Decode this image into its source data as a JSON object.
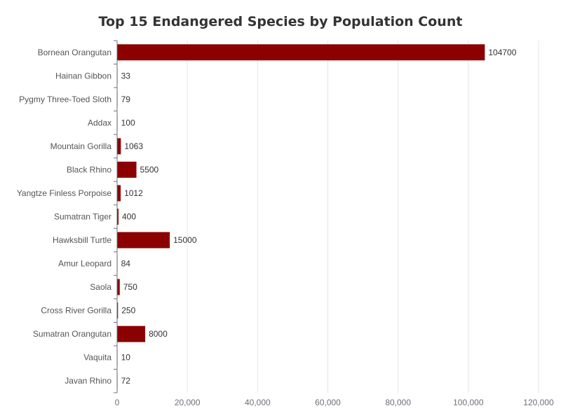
{
  "chart_data": {
    "type": "bar",
    "orientation": "horizontal",
    "title": "Top 15 Endangered Species by Population Count",
    "categories": [
      "Bornean Orangutan",
      "Hainan Gibbon",
      "Pygmy Three-Toed Sloth",
      "Addax",
      "Mountain Gorilla",
      "Black Rhino",
      "Yangtze Finless Porpoise",
      "Sumatran Tiger",
      "Hawksbill Turtle",
      "Amur Leopard",
      "Saola",
      "Cross River Gorilla",
      "Sumatran Orangutan",
      "Vaquita",
      "Javan Rhino"
    ],
    "values": [
      104700,
      33,
      79,
      100,
      1063,
      5500,
      1012,
      400,
      15000,
      84,
      750,
      250,
      8000,
      10,
      72
    ],
    "xlim": [
      0,
      120000
    ],
    "x_ticks": [
      0,
      20000,
      40000,
      60000,
      80000,
      100000,
      120000
    ],
    "x_tick_labels": [
      "0",
      "20,000",
      "40,000",
      "60,000",
      "80,000",
      "100,000",
      "120,000"
    ],
    "xlabel": "",
    "ylabel": "",
    "grid": "vertical",
    "legend": "none",
    "bar_color": "#8b0000"
  }
}
